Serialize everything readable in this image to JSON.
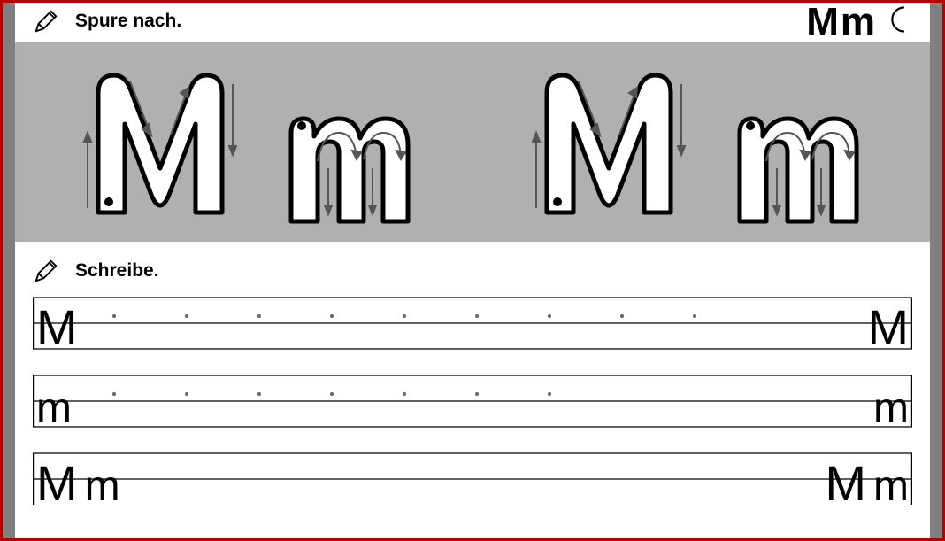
{
  "header": {
    "instruction_trace": "Spure nach.",
    "instruction_write": "Schreibe.",
    "corner_letters": "Mm"
  },
  "trace": {
    "background_color": "#b0b0b0",
    "letter_outline_color": "#000000",
    "letter_fill_color": "#ffffff",
    "arrow_color": "#555555",
    "letters": [
      "M",
      "m",
      "M",
      "m"
    ]
  },
  "writing_lines": {
    "rows": [
      {
        "left": "M",
        "right": "M",
        "dot_count": 9
      },
      {
        "left": "m",
        "right": "m",
        "dot_count": 7
      },
      {
        "left": "M m",
        "right": "M m",
        "dot_count": 0
      }
    ],
    "line_color": "#000000",
    "midline_color": "#888888"
  },
  "colors": {
    "frame_border": "#b70000",
    "frame_bg": "#808080",
    "page_bg": "#ffffff",
    "text": "#000000"
  }
}
